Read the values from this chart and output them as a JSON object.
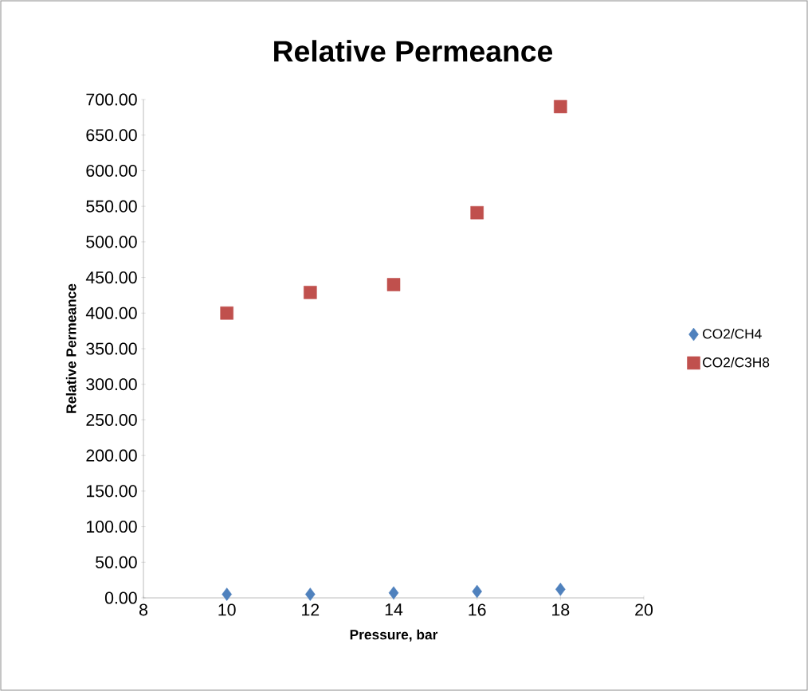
{
  "chart_data": {
    "type": "scatter",
    "title": "Relative Permeance",
    "xlabel": "Pressure, bar",
    "ylabel": "Relative Permeance",
    "x": [
      10,
      12,
      14,
      16,
      18
    ],
    "series": [
      {
        "name": "CO2/CH4",
        "color": "#4f81bd",
        "marker": "diamond",
        "values": [
          5,
          5,
          7,
          9,
          12
        ]
      },
      {
        "name": "CO2/C3H8",
        "color": "#c0504d",
        "marker": "square",
        "values": [
          400,
          429,
          440,
          541,
          690
        ]
      }
    ],
    "xlim": [
      8,
      20
    ],
    "xticks": [
      8,
      10,
      12,
      14,
      16,
      18,
      20
    ],
    "ylim": [
      0,
      700
    ],
    "yticks": [
      {
        "value": 0,
        "label": "0.00"
      },
      {
        "value": 50,
        "label": "50.00"
      },
      {
        "value": 100,
        "label": "100.00"
      },
      {
        "value": 150,
        "label": "150.00"
      },
      {
        "value": 200,
        "label": "200.00"
      },
      {
        "value": 250,
        "label": "250.00"
      },
      {
        "value": 300,
        "label": "300.00"
      },
      {
        "value": 350,
        "label": "350.00"
      },
      {
        "value": 400,
        "label": "400.00"
      },
      {
        "value": 450,
        "label": "450.00"
      },
      {
        "value": 500,
        "label": "500.00"
      },
      {
        "value": 550,
        "label": "550.00"
      },
      {
        "value": 600,
        "label": "600.00"
      },
      {
        "value": 650,
        "label": "650.00"
      },
      {
        "value": 700,
        "label": "700.00"
      }
    ],
    "legend": "right",
    "grid": false
  }
}
